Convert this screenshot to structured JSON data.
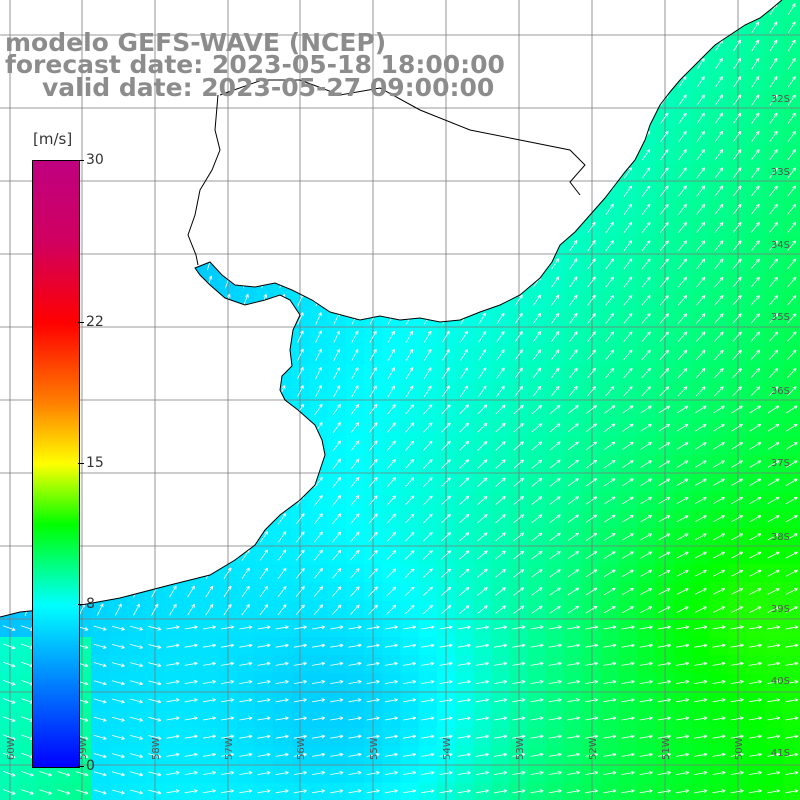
{
  "title": {
    "line1": "modelo GEFS-WAVE (NCEP)",
    "line2": "forecast date: 2023-05-18 18:00:00",
    "line3": "valid date: 2023-05-27 09:00:00"
  },
  "colorbar": {
    "units": "[m/s]",
    "min": 0,
    "max": 30,
    "labels": [
      {
        "text": "30",
        "value": 30
      },
      {
        "text": "22",
        "value": 22
      },
      {
        "text": "15",
        "value": 15
      },
      {
        "text": "8",
        "value": 8
      },
      {
        "text": "0",
        "value": 0
      }
    ]
  },
  "latitude_labels": [
    "32S",
    "33S",
    "34S",
    "35S",
    "36S",
    "37S",
    "38S",
    "39S",
    "40S",
    "41S"
  ],
  "longitude_labels": [
    "60W",
    "59W",
    "58W",
    "57W",
    "56W",
    "55W",
    "54W",
    "53W",
    "52W",
    "51W",
    "50W"
  ],
  "colors": {
    "land": "#ffffff",
    "coastline": "#000000",
    "grid": "#7a7a7a",
    "title": "#8c8c8c",
    "arrows": "#ffffff"
  },
  "field": {
    "variable": "wind speed",
    "direction": "toward northeast offshore, eastward in the south",
    "arrow_icon": "arrow-icon"
  }
}
